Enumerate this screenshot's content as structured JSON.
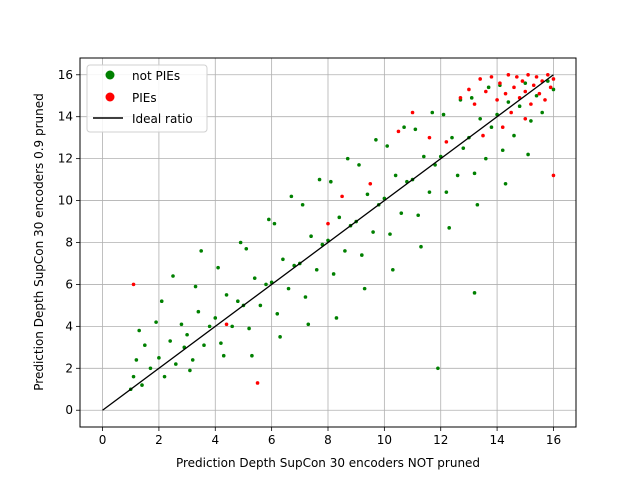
{
  "chart_data": {
    "type": "scatter",
    "title": "",
    "xlabel": "Prediction Depth SupCon 30 encoders NOT pruned",
    "ylabel": "Prediction Depth SupCon 30 encoders 0.9 pruned",
    "xlim": [
      -0.8,
      16.8
    ],
    "ylim": [
      -0.8,
      16.8
    ],
    "x_ticks": [
      0,
      2,
      4,
      6,
      8,
      10,
      12,
      14,
      16
    ],
    "y_ticks": [
      0,
      2,
      4,
      6,
      8,
      10,
      12,
      14,
      16
    ],
    "grid": true,
    "legend_position": "upper-left",
    "series": [
      {
        "name": "not PIEs",
        "color": "#008000",
        "marker": "circle",
        "points": [
          [
            1.0,
            1.0
          ],
          [
            1.1,
            1.6
          ],
          [
            1.2,
            2.4
          ],
          [
            1.4,
            1.2
          ],
          [
            1.5,
            3.1
          ],
          [
            1.7,
            2.0
          ],
          [
            1.9,
            4.2
          ],
          [
            1.3,
            3.8
          ],
          [
            2.0,
            2.5
          ],
          [
            2.2,
            1.6
          ],
          [
            2.4,
            3.3
          ],
          [
            2.1,
            5.2
          ],
          [
            2.6,
            2.2
          ],
          [
            2.8,
            4.1
          ],
          [
            2.9,
            3.0
          ],
          [
            2.5,
            6.4
          ],
          [
            3.0,
            3.6
          ],
          [
            3.2,
            2.4
          ],
          [
            3.4,
            4.7
          ],
          [
            3.6,
            3.1
          ],
          [
            3.3,
            5.9
          ],
          [
            3.8,
            4.0
          ],
          [
            3.5,
            7.6
          ],
          [
            3.1,
            1.9
          ],
          [
            4.0,
            4.4
          ],
          [
            4.2,
            3.2
          ],
          [
            4.4,
            5.5
          ],
          [
            4.6,
            4.0
          ],
          [
            4.1,
            6.8
          ],
          [
            4.8,
            5.2
          ],
          [
            4.3,
            2.6
          ],
          [
            4.9,
            8.0
          ],
          [
            5.0,
            5.0
          ],
          [
            5.2,
            3.9
          ],
          [
            5.4,
            6.3
          ],
          [
            5.6,
            5.0
          ],
          [
            5.1,
            7.7
          ],
          [
            5.8,
            6.0
          ],
          [
            5.3,
            2.6
          ],
          [
            5.9,
            9.1
          ],
          [
            6.0,
            6.1
          ],
          [
            6.2,
            4.6
          ],
          [
            6.4,
            7.2
          ],
          [
            6.6,
            5.8
          ],
          [
            6.1,
            8.9
          ],
          [
            6.8,
            6.9
          ],
          [
            6.3,
            3.5
          ],
          [
            6.7,
            10.2
          ],
          [
            7.0,
            7.0
          ],
          [
            7.2,
            5.4
          ],
          [
            7.4,
            8.3
          ],
          [
            7.6,
            6.7
          ],
          [
            7.1,
            9.8
          ],
          [
            7.8,
            7.9
          ],
          [
            7.3,
            4.1
          ],
          [
            7.7,
            11.0
          ],
          [
            8.0,
            8.1
          ],
          [
            8.2,
            6.5
          ],
          [
            8.4,
            9.2
          ],
          [
            8.6,
            7.6
          ],
          [
            8.1,
            10.9
          ],
          [
            8.8,
            8.8
          ],
          [
            8.3,
            4.4
          ],
          [
            8.7,
            12.0
          ],
          [
            9.0,
            9.0
          ],
          [
            9.2,
            7.4
          ],
          [
            9.4,
            10.3
          ],
          [
            9.6,
            8.5
          ],
          [
            9.1,
            11.7
          ],
          [
            9.8,
            9.8
          ],
          [
            9.3,
            5.8
          ],
          [
            9.7,
            12.9
          ],
          [
            10.0,
            10.1
          ],
          [
            10.2,
            8.4
          ],
          [
            10.4,
            11.2
          ],
          [
            10.6,
            9.4
          ],
          [
            10.1,
            12.6
          ],
          [
            10.8,
            10.9
          ],
          [
            10.3,
            6.7
          ],
          [
            10.7,
            13.5
          ],
          [
            11.0,
            11.0
          ],
          [
            11.2,
            9.3
          ],
          [
            11.4,
            12.1
          ],
          [
            11.6,
            10.4
          ],
          [
            11.1,
            13.4
          ],
          [
            11.8,
            11.7
          ],
          [
            11.3,
            7.8
          ],
          [
            11.7,
            14.2
          ],
          [
            12.0,
            12.1
          ],
          [
            12.2,
            10.4
          ],
          [
            12.4,
            13.0
          ],
          [
            12.6,
            11.2
          ],
          [
            12.1,
            14.1
          ],
          [
            12.8,
            12.5
          ],
          [
            12.3,
            8.7
          ],
          [
            12.7,
            14.8
          ],
          [
            13.0,
            13.0
          ],
          [
            13.2,
            11.3
          ],
          [
            13.4,
            13.9
          ],
          [
            13.6,
            12.0
          ],
          [
            13.1,
            14.9
          ],
          [
            13.8,
            13.5
          ],
          [
            13.3,
            9.8
          ],
          [
            13.7,
            15.4
          ],
          [
            14.0,
            14.1
          ],
          [
            14.2,
            12.4
          ],
          [
            14.4,
            14.7
          ],
          [
            14.6,
            13.1
          ],
          [
            14.1,
            15.5
          ],
          [
            14.8,
            14.5
          ],
          [
            14.3,
            10.8
          ],
          [
            15.0,
            15.6
          ],
          [
            15.2,
            13.8
          ],
          [
            15.4,
            15.0
          ],
          [
            15.6,
            14.2
          ],
          [
            15.8,
            15.7
          ],
          [
            15.1,
            12.2
          ],
          [
            16.0,
            15.3
          ],
          [
            11.9,
            2.0
          ],
          [
            13.2,
            5.6
          ]
        ]
      },
      {
        "name": "PIEs",
        "color": "#ff0000",
        "marker": "circle",
        "points": [
          [
            1.1,
            6.0
          ],
          [
            4.4,
            4.1
          ],
          [
            5.5,
            1.3
          ],
          [
            8.0,
            8.9
          ],
          [
            8.5,
            10.2
          ],
          [
            9.5,
            10.8
          ],
          [
            10.5,
            13.3
          ],
          [
            11.0,
            14.2
          ],
          [
            11.6,
            13.0
          ],
          [
            12.2,
            12.8
          ],
          [
            12.7,
            14.9
          ],
          [
            13.0,
            15.3
          ],
          [
            13.2,
            14.6
          ],
          [
            13.4,
            15.8
          ],
          [
            13.6,
            15.2
          ],
          [
            13.8,
            15.9
          ],
          [
            14.0,
            14.8
          ],
          [
            14.1,
            15.6
          ],
          [
            14.3,
            15.1
          ],
          [
            14.4,
            16.0
          ],
          [
            14.5,
            14.2
          ],
          [
            14.6,
            15.4
          ],
          [
            14.7,
            15.9
          ],
          [
            14.8,
            14.9
          ],
          [
            14.9,
            15.7
          ],
          [
            15.0,
            15.2
          ],
          [
            15.1,
            16.0
          ],
          [
            15.2,
            14.6
          ],
          [
            15.3,
            15.5
          ],
          [
            15.4,
            15.9
          ],
          [
            15.5,
            15.1
          ],
          [
            15.6,
            15.7
          ],
          [
            15.7,
            14.8
          ],
          [
            15.8,
            16.0
          ],
          [
            15.9,
            15.4
          ],
          [
            16.0,
            15.8
          ],
          [
            16.0,
            11.2
          ],
          [
            15.0,
            13.9
          ],
          [
            14.2,
            13.5
          ],
          [
            13.5,
            13.1
          ]
        ]
      },
      {
        "name": "Ideal ratio",
        "color": "#000000",
        "marker": "line",
        "points": [
          [
            0,
            0
          ],
          [
            16,
            16
          ]
        ]
      }
    ]
  }
}
